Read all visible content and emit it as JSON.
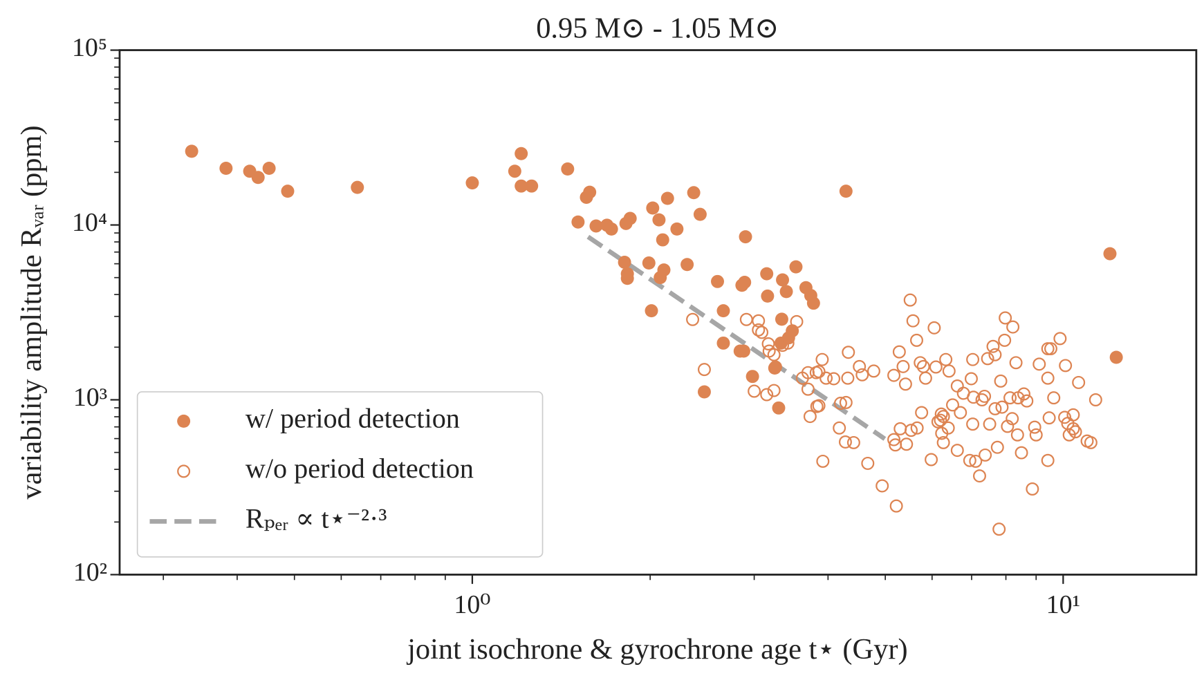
{
  "chart_data": {
    "type": "scatter",
    "title": "0.95 M⊙ - 1.05 M⊙",
    "x_label": "joint isochrone & gyrochrone age t⋆ (Gyr)",
    "y_label": "variability amplitude Rᵥₐᵣ (ppm)",
    "xscale": "log",
    "yscale": "log",
    "xlim": [
      0.253,
      16.8
    ],
    "ylim": [
      100,
      100000
    ],
    "xticks": [
      {
        "value": 1,
        "label": "10⁰"
      },
      {
        "value": 10,
        "label": "10¹"
      }
    ],
    "yticks": [
      {
        "value": 100,
        "label": "10²"
      },
      {
        "value": 1000,
        "label": "10³"
      },
      {
        "value": 10000,
        "label": "10⁴"
      },
      {
        "value": 100000,
        "label": "10⁵"
      }
    ],
    "xminorticks": [
      0.3,
      0.4,
      0.5,
      0.6,
      0.7,
      0.8,
      0.9,
      2,
      3,
      4,
      5,
      6,
      7,
      8,
      9
    ],
    "yminorticks": [
      200,
      300,
      400,
      500,
      600,
      700,
      800,
      900,
      2000,
      3000,
      4000,
      5000,
      6000,
      7000,
      8000,
      9000,
      20000,
      30000,
      40000,
      50000,
      60000,
      70000,
      80000,
      90000
    ],
    "legend": "lower left",
    "series": [
      {
        "name": "w/ period detection",
        "color": "#dd8452",
        "marker": "filled",
        "x": [
          0.335,
          0.383,
          0.42,
          0.434,
          0.453,
          0.487,
          0.639,
          1.0,
          1.18,
          1.21,
          1.21,
          1.26,
          1.45,
          1.51,
          1.56,
          1.58,
          1.62,
          1.69,
          1.72,
          1.82,
          1.85,
          1.81,
          1.83,
          1.83,
          1.99,
          2.02,
          2.07,
          2.08,
          2.1,
          2.14,
          2.11,
          2.01,
          2.22,
          2.31,
          2.37,
          2.43,
          2.6,
          2.66,
          2.66,
          2.86,
          2.89,
          2.9,
          2.84,
          2.88,
          2.98,
          3.15,
          3.16,
          3.35,
          3.4,
          3.53,
          3.34,
          3.25,
          3.33,
          3.43,
          3.48,
          3.67,
          3.74,
          3.78,
          3.3,
          2.47,
          4.29,
          12.0,
          12.3
        ],
        "y": [
          26400,
          21100,
          20300,
          18700,
          21100,
          15600,
          16400,
          17400,
          20300,
          25600,
          16700,
          16700,
          20900,
          10400,
          14400,
          15400,
          9870,
          9970,
          9480,
          10200,
          10900,
          6120,
          5260,
          4950,
          6060,
          12500,
          10700,
          5000,
          8220,
          14200,
          5530,
          3230,
          9480,
          5940,
          15300,
          11500,
          4750,
          3230,
          2110,
          4520,
          4700,
          8560,
          1900,
          1900,
          1360,
          5260,
          3920,
          4850,
          4160,
          5760,
          2890,
          1520,
          2110,
          2260,
          2480,
          4380,
          3950,
          3570,
          898,
          1110,
          15600,
          6850,
          1750
        ]
      },
      {
        "name": "w/o period detection",
        "color": "#dd8452",
        "marker": "open",
        "x": [
          2.36,
          2.47,
          2.91,
          3.05,
          3.05,
          3.09,
          3.0,
          3.17,
          3.18,
          3.15,
          3.24,
          3.26,
          3.24,
          3.35,
          3.42,
          3.54,
          3.62,
          3.7,
          3.7,
          3.82,
          3.83,
          3.86,
          3.91,
          3.97,
          3.73,
          3.86,
          3.92,
          4.09,
          4.18,
          4.2,
          4.29,
          4.28,
          4.32,
          4.33,
          4.42,
          4.52,
          4.57,
          4.67,
          4.78,
          4.94,
          5.17,
          5.17,
          5.2,
          5.22,
          5.28,
          5.3,
          5.36,
          5.41,
          5.43,
          5.53,
          5.51,
          5.57,
          5.66,
          5.65,
          5.76,
          5.73,
          5.8,
          5.85,
          5.98,
          6.05,
          6.09,
          6.14,
          6.2,
          6.22,
          6.23,
          6.27,
          6.27,
          6.33,
          6.39,
          6.41,
          6.5,
          6.62,
          6.62,
          6.7,
          6.78,
          6.95,
          6.99,
          7.03,
          7.05,
          7.03,
          7.11,
          7.22,
          7.29,
          7.36,
          7.45,
          7.38,
          7.51,
          7.67,
          7.74,
          7.61,
          7.67,
          7.79,
          7.84,
          7.88,
          7.96,
          7.98,
          8.05,
          8.13,
          8.2,
          8.22,
          8.32,
          8.37,
          8.39,
          8.5,
          8.58,
          8.68,
          8.87,
          8.95,
          9.0,
          9.11,
          9.42,
          9.42,
          9.42,
          9.47,
          9.53,
          9.64,
          9.88,
          10.06,
          10.09,
          10.18,
          10.24,
          10.4,
          10.4,
          10.49,
          10.62,
          10.98,
          11.14,
          11.35
        ],
        "y": [
          2880,
          1490,
          2880,
          2830,
          2510,
          2430,
          1120,
          2090,
          1900,
          1070,
          1130,
          1540,
          1810,
          2050,
          2110,
          2800,
          1330,
          1150,
          1430,
          1430,
          916,
          1450,
          1700,
          1330,
          803,
          925,
          445,
          1320,
          690,
          955,
          965,
          574,
          1330,
          1870,
          569,
          1550,
          1390,
          433,
          1460,
          322,
          1380,
          592,
          552,
          247,
          1880,
          683,
          1550,
          1230,
          557,
          669,
          3720,
          2830,
          690,
          2190,
          845,
          1630,
          1550,
          1330,
          455,
          2580,
          1540,
          749,
          764,
          829,
          643,
          803,
          569,
          1700,
          690,
          1460,
          935,
          1200,
          514,
          845,
          1090,
          450,
          1320,
          726,
          1035,
          1700,
          445,
          367,
          1000,
          1047,
          1720,
          483,
          726,
          889,
          535,
          2020,
          1810,
          182,
          1280,
          908,
          2190,
          2940,
          705,
          1026,
          780,
          2610,
          1630,
          630,
          1026,
          498,
          1080,
          985,
          309,
          697,
          630,
          1600,
          1960,
          1330,
          450,
          788,
          1960,
          1026,
          2240,
          794,
          1570,
          733,
          630,
          820,
          683,
          656,
          1256,
          581,
          569,
          1000
        ]
      },
      {
        "name": "Rₚₑᵣ ∝ t⋆⁻²·³",
        "color": "#a6a6a6",
        "marker": "dashed-line",
        "x": [
          1.57,
          4.99
        ],
        "y": [
          8560,
          598
        ]
      }
    ]
  }
}
